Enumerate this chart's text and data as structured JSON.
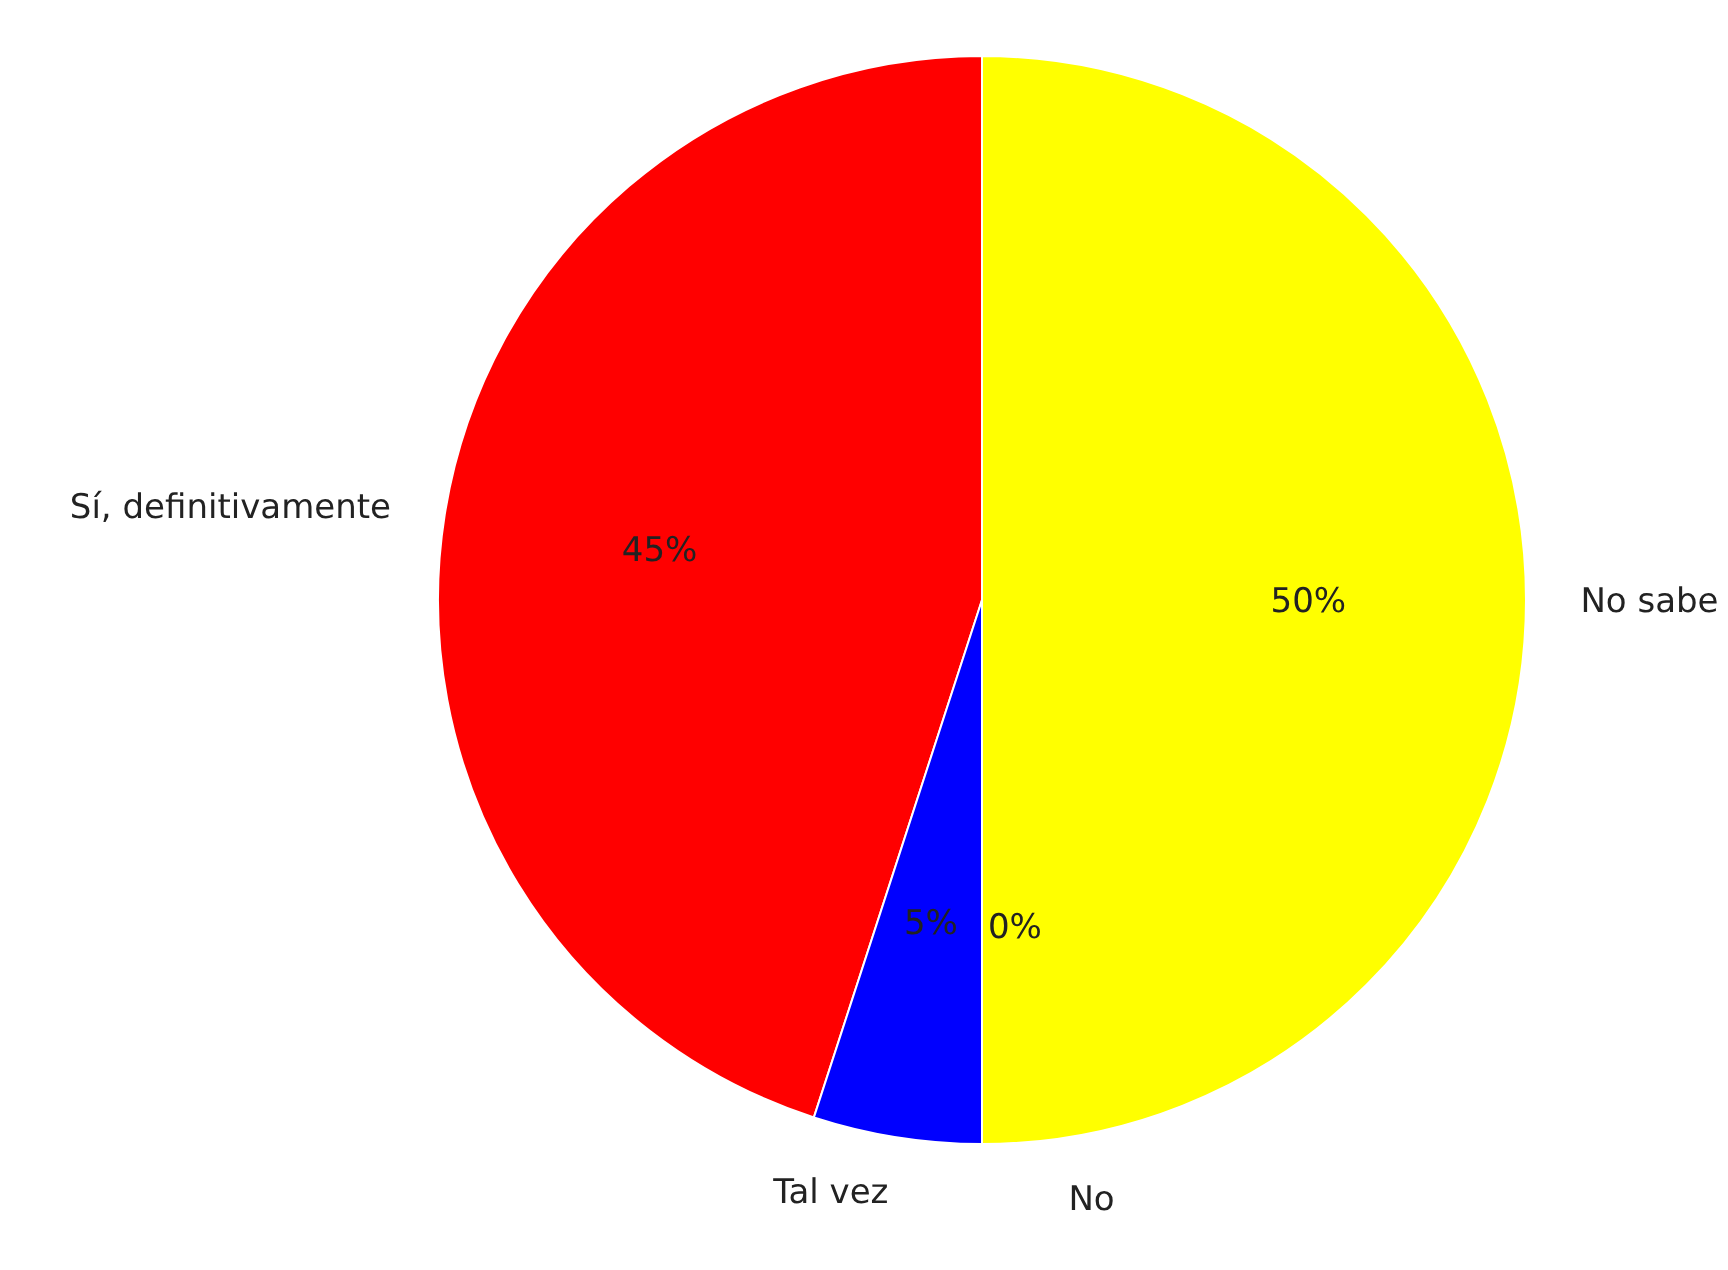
{
  "chart_data": {
    "type": "pie",
    "categories": [
      "Sí, definitivamente",
      "Tal vez",
      "No",
      "No sabe"
    ],
    "values": [
      45,
      5,
      0,
      50
    ],
    "colors": [
      "#ff0000",
      "#0000ff",
      "#008000",
      "#ffff00"
    ],
    "value_labels": [
      "45%",
      "5%",
      "0%",
      "50%"
    ]
  }
}
